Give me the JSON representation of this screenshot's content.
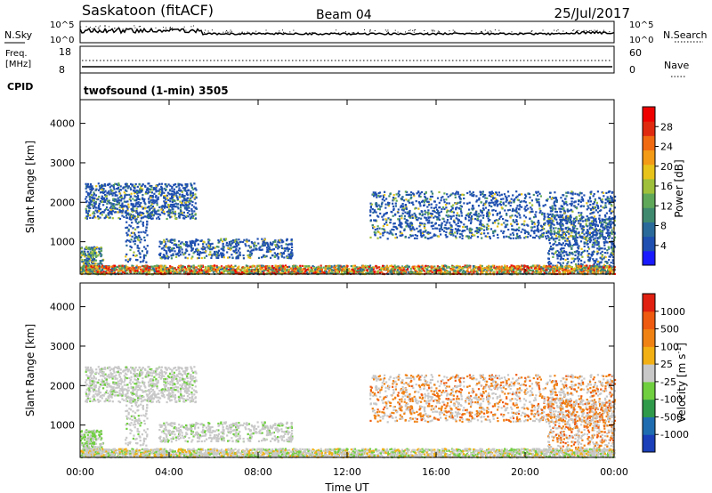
{
  "header": {
    "station": "Saskatoon (fitACF)",
    "beam": "Beam 04",
    "date": "25/Jul/2017"
  },
  "noise_panel": {
    "left_label": "N.Sky",
    "right_label": "N.Search",
    "ticks": [
      "10^5",
      "10^0"
    ]
  },
  "freq_panel": {
    "left_label_line1": "Freq.",
    "left_label_line2": "[MHz]",
    "right_label": "Nave",
    "left_ticks": [
      "18",
      "8"
    ],
    "right_ticks": [
      "60",
      "0"
    ]
  },
  "cpid_panel": {
    "label": "CPID",
    "program": "twofsound (1-min) 3505"
  },
  "chart_data": [
    {
      "type": "heatmap",
      "quantity": "power",
      "ylabel": "Slant Range [km]",
      "xlabel": "",
      "ylim": [
        180,
        4600
      ],
      "yticks": [
        "4000",
        "3000",
        "2000",
        "1000"
      ],
      "colorbar": {
        "label": "Power [dB]",
        "ticks": [
          "28",
          "24",
          "20",
          "16",
          "12",
          "8",
          "4"
        ],
        "colors": [
          "#1a1aff",
          "#1f4fb0",
          "#2a6a9a",
          "#3f8a6f",
          "#5fa85a",
          "#9ec03a",
          "#e8c31a",
          "#f39a16",
          "#f06a12",
          "#e02a10",
          "#ee0000"
        ]
      }
    },
    {
      "type": "heatmap",
      "quantity": "velocity",
      "ylabel": "Slant Range [km]",
      "xlabel": "Time UT",
      "ylim": [
        180,
        4600
      ],
      "yticks": [
        "4000",
        "3000",
        "2000",
        "1000"
      ],
      "xticks": [
        "00:00",
        "04:00",
        "08:00",
        "12:00",
        "16:00",
        "20:00",
        "00:00"
      ],
      "colorbar": {
        "label_main": "Velocity [m s",
        "label_exp": "-1",
        "label_end": "]",
        "ticks": [
          "1000",
          "500",
          "100",
          "25",
          "-25",
          "-100",
          "-500",
          "-1000"
        ],
        "colors": [
          "#1a3fb8",
          "#1f6db0",
          "#2f9a4a",
          "#6fcf3f",
          "#c8c8c8",
          "#f2b014",
          "#f08214",
          "#ee5a10",
          "#e02010"
        ]
      }
    }
  ]
}
